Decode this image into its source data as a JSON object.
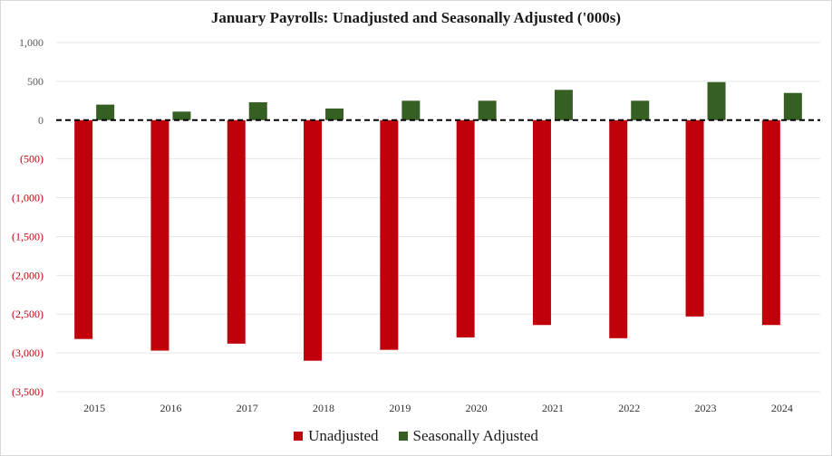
{
  "chart_data": {
    "type": "bar",
    "title": "January Payrolls: Unadjusted and Seasonally Adjusted ('000s)",
    "categories": [
      "2015",
      "2016",
      "2017",
      "2018",
      "2019",
      "2020",
      "2021",
      "2022",
      "2023",
      "2024"
    ],
    "series": [
      {
        "name": "Unadjusted",
        "color": "#c0000b",
        "values": [
          -2820,
          -2970,
          -2880,
          -3100,
          -2960,
          -2800,
          -2640,
          -2810,
          -2530,
          -2640
        ]
      },
      {
        "name": "Seasonally Adjusted",
        "color": "#365f23",
        "values": [
          200,
          110,
          230,
          150,
          250,
          250,
          390,
          250,
          490,
          350
        ]
      }
    ],
    "yticks": [
      1000,
      500,
      0,
      -500,
      -1000,
      -1500,
      -2000,
      -2500,
      -3000,
      -3500
    ],
    "ytick_labels": [
      "1,000",
      "500",
      "0",
      "(500)",
      "(1,000)",
      "(1,500)",
      "(2,000)",
      "(2,500)",
      "(3,000)",
      "(3,500)"
    ],
    "ylim": [
      -3500,
      1000
    ],
    "zero_line": "dashed",
    "grid": true,
    "legend": "bottom",
    "positive_label_color": "#595959",
    "negative_label_color": "#c0000b",
    "grid_color": "#e6e6e6"
  }
}
